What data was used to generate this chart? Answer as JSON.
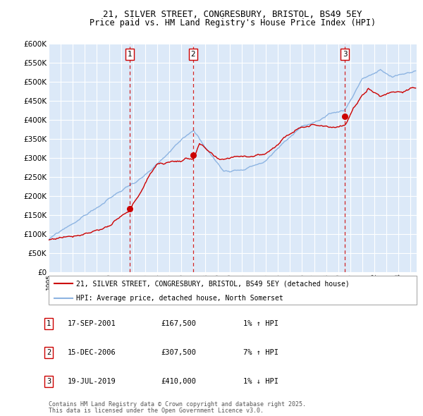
{
  "title": "21, SILVER STREET, CONGRESBURY, BRISTOL, BS49 5EY",
  "subtitle": "Price paid vs. HM Land Registry's House Price Index (HPI)",
  "legend_line1": "21, SILVER STREET, CONGRESBURY, BRISTOL, BS49 5EY (detached house)",
  "legend_line2": "HPI: Average price, detached house, North Somerset",
  "footnote1": "Contains HM Land Registry data © Crown copyright and database right 2025.",
  "footnote2": "This data is licensed under the Open Government Licence v3.0.",
  "transactions": [
    {
      "num": 1,
      "date": "17-SEP-2001",
      "price": 167500,
      "pct": "1%",
      "dir": "↑"
    },
    {
      "num": 2,
      "date": "15-DEC-2006",
      "price": 307500,
      "pct": "7%",
      "dir": "↑"
    },
    {
      "num": 3,
      "date": "19-JUL-2019",
      "price": 410000,
      "pct": "1%",
      "dir": "↓"
    }
  ],
  "sale_dates_num": [
    2001.72,
    2006.96,
    2019.54
  ],
  "sale_prices": [
    167500,
    307500,
    410000
  ],
  "ylim": [
    0,
    600000
  ],
  "yticks": [
    0,
    50000,
    100000,
    150000,
    200000,
    250000,
    300000,
    350000,
    400000,
    450000,
    500000,
    550000,
    600000
  ],
  "plot_bg": "#dce9f8",
  "grid_color": "#ffffff",
  "red_line_color": "#cc0000",
  "blue_line_color": "#8db4e2",
  "dashed_color": "#cc0000",
  "marker_color": "#cc0000",
  "box_color": "#cc0000",
  "title_fontsize": 9,
  "subtitle_fontsize": 8.5
}
